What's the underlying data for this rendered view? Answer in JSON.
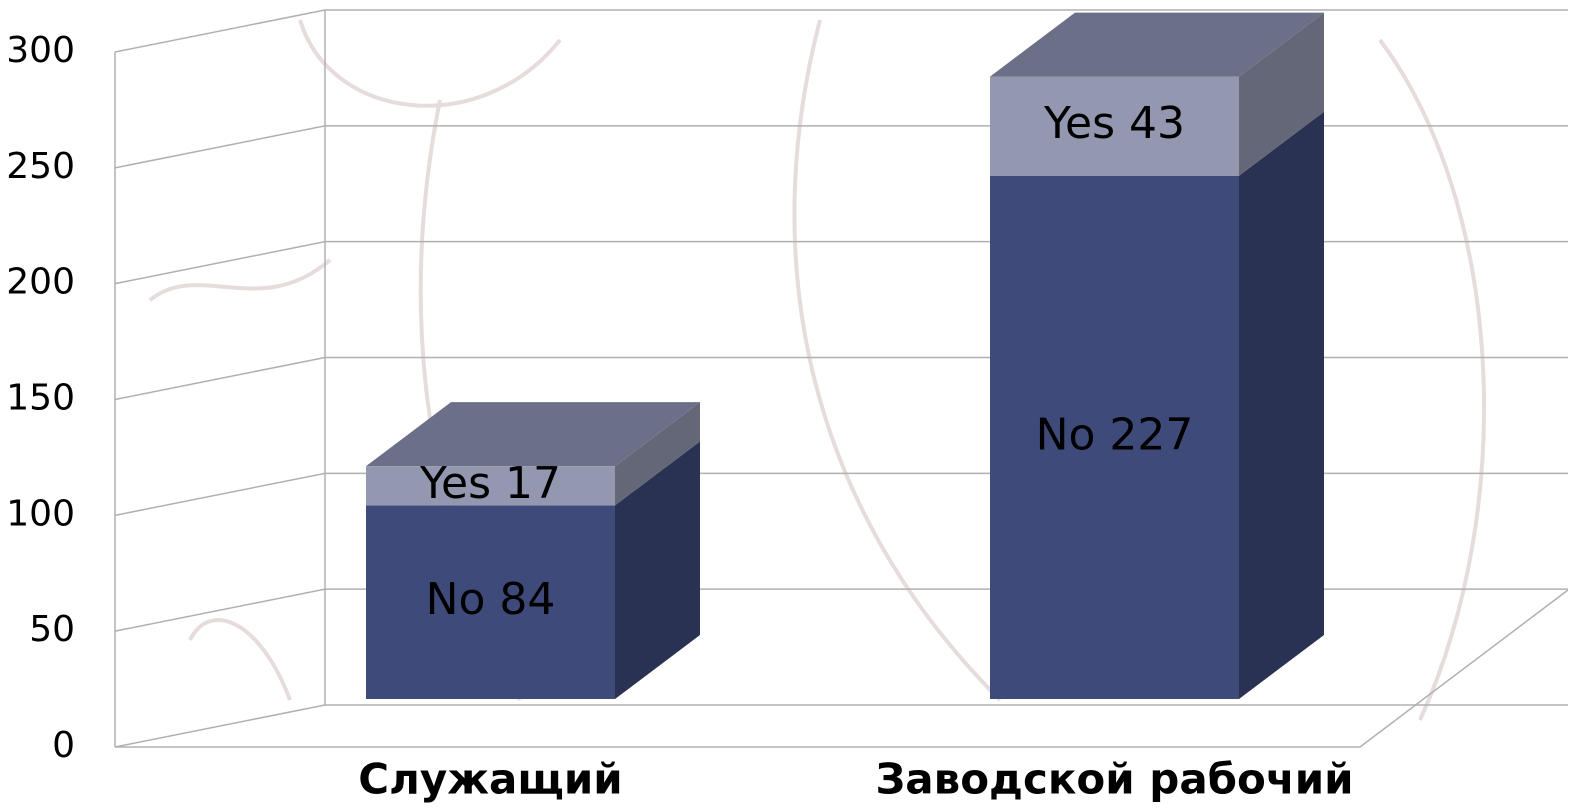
{
  "chart_data": {
    "type": "bar3d_stacked",
    "categories": [
      "Служащий",
      "Заводской рабочий"
    ],
    "series": [
      {
        "name": "No",
        "color": "#3d4a7a",
        "values": [
          84,
          227
        ],
        "value_labels": [
          "No 84",
          "No 227"
        ]
      },
      {
        "name": "Yes",
        "color": "#9398b0",
        "values": [
          17,
          43
        ],
        "value_labels": [
          "Yes 17",
          "Yes 43"
        ]
      }
    ],
    "ylim": [
      0,
      300
    ],
    "yticks": [
      0,
      50,
      100,
      150,
      200,
      250,
      300
    ],
    "grid": true
  }
}
